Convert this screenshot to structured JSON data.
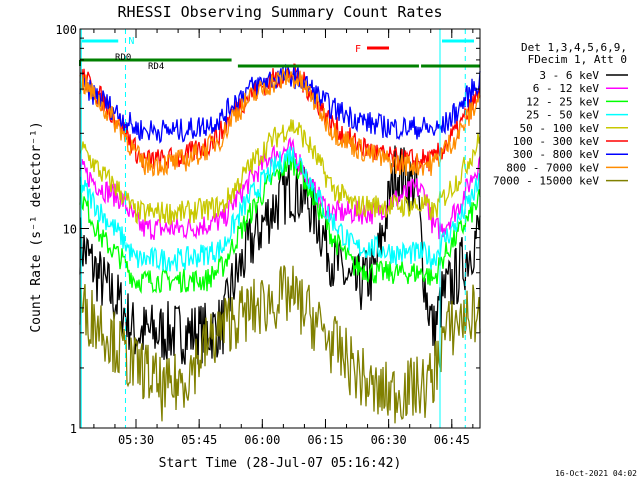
{
  "chart_data": {
    "type": "line",
    "title": "RHESSI Observing Summary Count Rates",
    "xlabel": "Start Time (28-Jul-07 05:16:42)",
    "ylabel": "Count Rate (s⁻¹ detector⁻¹)",
    "yscale": "log",
    "ylim": [
      1,
      100
    ],
    "xlim_minutes_after_start": [
      0,
      95
    ],
    "y_ticks": [
      {
        "value": 1,
        "label": "1"
      },
      {
        "value": 10,
        "label": "10"
      },
      {
        "value": 100,
        "label": "100"
      }
    ],
    "x_ticks": [
      {
        "value": 13.3,
        "label": "05:30"
      },
      {
        "value": 28.3,
        "label": "05:45"
      },
      {
        "value": 43.3,
        "label": "06:00"
      },
      {
        "value": 58.3,
        "label": "06:15"
      },
      {
        "value": 73.3,
        "label": "06:30"
      },
      {
        "value": 88.3,
        "label": "06:45"
      }
    ],
    "x": [
      0,
      5,
      10,
      13,
      15,
      20,
      25,
      30,
      34,
      36,
      40,
      45,
      50,
      52,
      55,
      58,
      60,
      65,
      70,
      75,
      80,
      82,
      84,
      86,
      90,
      95
    ],
    "legend_header": [
      "Det 1,3,4,5,6,9,",
      "FDecim 1, Att 0"
    ],
    "series": [
      {
        "name": "3 - 6 keV",
        "color": "#000000",
        "values": [
          8.5,
          5.5,
          4.0,
          3.0,
          3.0,
          3.0,
          3.0,
          3.0,
          3.3,
          5.0,
          8.0,
          12.0,
          16.0,
          15.0,
          13.0,
          9.0,
          7.0,
          5.0,
          6.0,
          20.0,
          16.0,
          5.0,
          3.0,
          4.5,
          6.0,
          10.0
        ]
      },
      {
        "name": "6 - 12 keV",
        "color": "#ff00ff",
        "values": [
          20.0,
          16.0,
          14.0,
          11.0,
          10.0,
          10.0,
          10.0,
          10.5,
          11.0,
          13.0,
          17.0,
          23.0,
          25.0,
          22.0,
          16.0,
          13.0,
          12.0,
          12.0,
          12.0,
          14.0,
          16.0,
          15.0,
          10.0,
          10.0,
          13.0,
          22.0
        ]
      },
      {
        "name": "12 - 25 keV",
        "color": "#00ff00",
        "values": [
          15.0,
          9.0,
          7.0,
          5.5,
          5.5,
          5.5,
          5.5,
          5.5,
          6.5,
          8.0,
          11.5,
          17.0,
          22.0,
          20.0,
          15.0,
          11.0,
          9.0,
          6.5,
          6.0,
          6.0,
          6.0,
          6.0,
          5.5,
          7.0,
          9.5,
          14.0
        ]
      },
      {
        "name": "25 - 50 keV",
        "color": "#00ffff",
        "values": [
          17.0,
          12.0,
          9.0,
          7.0,
          7.0,
          7.0,
          7.0,
          7.5,
          8.0,
          10.0,
          14.0,
          19.0,
          24.0,
          22.0,
          17.0,
          12.5,
          11.0,
          8.0,
          8.0,
          7.5,
          7.5,
          7.5,
          7.0,
          8.5,
          11.0,
          17.0
        ]
      },
      {
        "name": "50 - 100 keV",
        "color": "#c8c800",
        "values": [
          26.0,
          19.0,
          15.0,
          12.0,
          12.0,
          12.0,
          12.0,
          12.5,
          13.0,
          15.0,
          20.0,
          27.0,
          33.0,
          31.0,
          25.0,
          19.0,
          16.0,
          13.0,
          13.0,
          13.0,
          13.0,
          13.0,
          12.0,
          14.0,
          18.0,
          28.0
        ]
      },
      {
        "name": "100 - 300 keV",
        "color": "#ff0000",
        "values": [
          60.0,
          45.0,
          33.0,
          25.0,
          22.0,
          22.0,
          23.0,
          26.0,
          31.0,
          38.0,
          46.0,
          55.0,
          60.0,
          57.0,
          48.0,
          38.0,
          33.0,
          27.0,
          24.0,
          22.0,
          22.0,
          22.0,
          22.0,
          25.0,
          32.0,
          48.0
        ]
      },
      {
        "name": "300 - 800 keV",
        "color": "#0000ff",
        "values": [
          52.0,
          45.0,
          36.0,
          32.0,
          31.0,
          31.0,
          31.0,
          33.0,
          36.0,
          42.0,
          50.0,
          56.0,
          59.0,
          56.0,
          50.0,
          43.0,
          40.0,
          36.0,
          33.0,
          32.0,
          32.0,
          32.0,
          31.0,
          32.0,
          40.0,
          56.0
        ]
      },
      {
        "name": "800 - 7000 keV",
        "color": "#ff8c00",
        "values": [
          56.0,
          42.0,
          31.0,
          24.0,
          21.0,
          21.0,
          22.0,
          25.0,
          29.0,
          36.0,
          44.0,
          53.0,
          58.0,
          55.0,
          46.0,
          36.0,
          31.0,
          26.0,
          23.0,
          21.0,
          21.0,
          21.0,
          21.0,
          24.0,
          30.0,
          46.0
        ]
      },
      {
        "name": "7000 - 15000 keV",
        "color": "#808000",
        "values": [
          4.0,
          3.3,
          2.4,
          2.0,
          2.0,
          1.5,
          1.8,
          2.6,
          3.2,
          3.5,
          3.8,
          4.3,
          4.7,
          4.2,
          3.6,
          3.0,
          2.6,
          2.0,
          1.5,
          1.5,
          1.6,
          1.6,
          1.8,
          2.8,
          3.5,
          3.8
        ]
      }
    ],
    "annotations": {
      "flare_label": "F",
      "flare_color": "#ff0000",
      "night_label": "N",
      "night_color": "#00ffff",
      "rd_labels": [
        {
          "text": "RD0",
          "at": 12
        },
        {
          "text": "RD4",
          "at": 18
        }
      ],
      "rd_color": "#008000"
    },
    "timestamp": "16-Oct-2021 04:02"
  }
}
